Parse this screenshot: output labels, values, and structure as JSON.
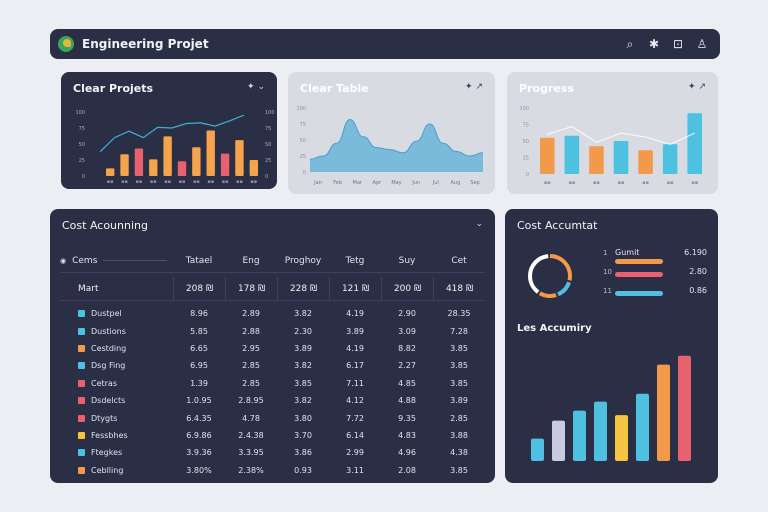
{
  "app": {
    "title": "Engineering Projet",
    "icons": [
      "search-icon",
      "settings-icon",
      "camera-icon",
      "profile-icon"
    ]
  },
  "cards": {
    "clear_projects": {
      "title": "Clear Projets",
      "ctrl": "✦ ⌄",
      "chart_data": {
        "type": "bar",
        "title": "Clear Projets",
        "categories": [
          "Wk1",
          "Wk2",
          "Wk3",
          "Wk4",
          "Wk5",
          "Wk6",
          "Wk7",
          "Wk8",
          "Wk9",
          "Wk10",
          "Wk11"
        ],
        "series": [
          {
            "name": "Bars",
            "values": [
              12,
              34,
              43,
              26,
              62,
              23,
              45,
              71,
              35,
              56,
              25
            ]
          },
          {
            "name": "Trend",
            "values": [
              38,
              60,
              70,
              60,
              76,
              75,
              82,
              83,
              78,
              86,
              95
            ]
          }
        ],
        "ylim": [
          0,
          100
        ],
        "y_ticks": [
          "100",
          "75",
          "50",
          "25",
          "0"
        ],
        "colors": [
          "#f5a34c",
          "#e8616e",
          "#3fb0d8"
        ]
      }
    },
    "clear_table": {
      "title": "Clear Table",
      "ctrl": "✦ ↗",
      "chart_data": {
        "type": "area",
        "title": "Clear Table",
        "x": [
          0,
          1,
          2,
          3,
          4,
          5,
          6,
          7,
          8,
          9,
          10,
          11,
          12,
          13
        ],
        "values": [
          20,
          25,
          45,
          82,
          55,
          38,
          35,
          30,
          48,
          75,
          45,
          32,
          25,
          30
        ],
        "ylim": [
          0,
          100
        ],
        "y_ticks": [
          "100",
          "75",
          "50",
          "25",
          "0"
        ],
        "x_ticks": [
          "Jan",
          "Feb",
          "Mar",
          "Apr",
          "May",
          "Jun",
          "Jul",
          "Aug",
          "Sep"
        ],
        "color": "#6fb6d8"
      }
    },
    "progress": {
      "title": "Progress",
      "ctrl": "✦ ↗",
      "chart_data": {
        "type": "bar",
        "title": "Progress",
        "categories": [
          "A",
          "B",
          "C",
          "D",
          "E",
          "F",
          "G"
        ],
        "values": [
          55,
          58,
          42,
          50,
          36,
          45,
          92
        ],
        "trend": [
          60,
          72,
          48,
          62,
          56,
          45,
          62
        ],
        "ylim": [
          0,
          100
        ],
        "y_ticks": [
          "100",
          "75",
          "50",
          "25",
          "0"
        ],
        "colors": [
          "#f39a4a",
          "#4ec0e0",
          "#f39a4a",
          "#4ec0e0",
          "#f39a4a",
          "#4ec0e0",
          "#4ec0e0"
        ]
      }
    },
    "cost_table": {
      "title": "Cost Acounning",
      "ctrl": "⌄",
      "search_label": "Cems",
      "columns": [
        "Tatael",
        "Eng",
        "Proghoy",
        "Tetg",
        "Suy",
        "Cet"
      ],
      "total": {
        "label": "Mart",
        "values": [
          "208 ₪",
          "178 ₪",
          "228 ₪",
          "121 ₪",
          "200 ₪",
          "418 ₪"
        ]
      },
      "rows": [
        {
          "label": "Dustpel",
          "color": "#4ec0e0",
          "values": [
            "8.96",
            "2.89",
            "3.82",
            "4.19",
            "2.90",
            "28.35"
          ]
        },
        {
          "label": "Dustions",
          "color": "#4ec0e0",
          "values": [
            "5.85",
            "2.88",
            "2.30",
            "3.89",
            "3.09",
            "7.28"
          ]
        },
        {
          "label": "Cestding",
          "color": "#f39a4a",
          "values": [
            "6.65",
            "2.95",
            "3.89",
            "4.19",
            "8.82",
            "3.85"
          ]
        },
        {
          "label": "Dsg Fing",
          "color": "#4ec0e0",
          "values": [
            "6.95",
            "2.85",
            "3.82",
            "6.17",
            "2.27",
            "3.85"
          ]
        },
        {
          "label": "Cetras",
          "color": "#e8616e",
          "values": [
            "1.39",
            "2.85",
            "3.85",
            "7.11",
            "4.85",
            "3.85"
          ]
        },
        {
          "label": "Dsdelcts",
          "color": "#e8616e",
          "values": [
            "1.0.95",
            "2.8.95",
            "3.82",
            "4.12",
            "4.88",
            "3.89"
          ]
        },
        {
          "label": "Dtygts",
          "color": "#e8616e",
          "values": [
            "6.4.35",
            "4.78",
            "3.80",
            "7.72",
            "9.35",
            "2.85"
          ]
        },
        {
          "label": "Fessbhes",
          "color": "#f5c542",
          "values": [
            "6.9.86",
            "2.4.38",
            "3.70",
            "6.14",
            "4.83",
            "3.88"
          ]
        },
        {
          "label": "Ftegkes",
          "color": "#4ec0e0",
          "values": [
            "3.9.36",
            "3.3.95",
            "3.86",
            "2.99",
            "4.96",
            "4.38"
          ]
        },
        {
          "label": "Ceblling",
          "color": "#f39a4a",
          "values": [
            "3.80%",
            "2.38%",
            "0.93",
            "3.11",
            "2.08",
            "3.85"
          ]
        }
      ]
    },
    "cost_account": {
      "title": "Cost Accumtat",
      "donut": {
        "segments": [
          {
            "value": 30,
            "color": "#f39a4a"
          },
          {
            "value": 15,
            "color": "#4ec0e0"
          },
          {
            "value": 15,
            "color": "#f39a4a"
          },
          {
            "value": 40,
            "color": "#ffffff"
          }
        ]
      },
      "legend": [
        {
          "num": "1",
          "label": "Gumit",
          "value": "6.190",
          "color": "#f39a4a"
        },
        {
          "num": "10",
          "label": "",
          "value": "2.80",
          "color": "#e8616e"
        },
        {
          "num": "11",
          "label": "",
          "value": "0.86",
          "color": "#4ec0e0"
        }
      ],
      "sub_title": "Les Accumiry",
      "chart_data": {
        "type": "bar",
        "categories": [
          "1",
          "2",
          "3",
          "4",
          "5",
          "6",
          "7",
          "8"
        ],
        "values": [
          20,
          36,
          45,
          53,
          41,
          60,
          86,
          94
        ],
        "ylim": [
          0,
          100
        ],
        "colors": [
          "#4ec0e0",
          "#c9cbe0",
          "#4ec0e0",
          "#4ec0e0",
          "#f5c542",
          "#4ec0e0",
          "#f39a4a",
          "#e8616e"
        ]
      }
    }
  }
}
